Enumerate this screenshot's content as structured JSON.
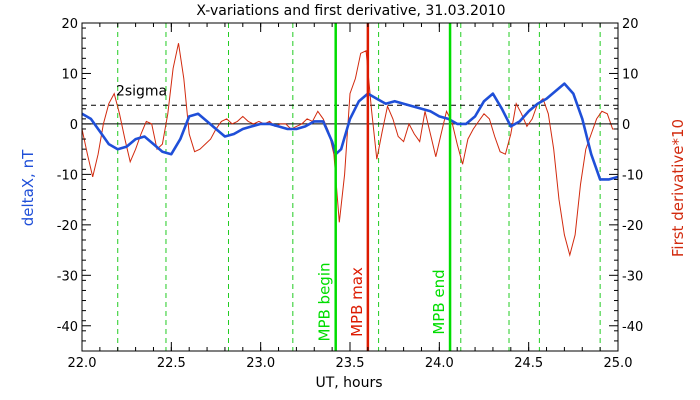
{
  "chart_data": {
    "type": "line",
    "title": "X-variations and first derivative, 31.03.2010",
    "xlabel": "UT, hours",
    "ylabel_left": "deltaX, nT",
    "ylabel_right": "First derivative*10",
    "xlim": [
      22.0,
      25.0
    ],
    "ylim": [
      -45,
      20
    ],
    "x_ticks": [
      "22.0",
      "22.5",
      "23.0",
      "23.5",
      "24.0",
      "24.5",
      "25.0"
    ],
    "y_ticks": [
      "20",
      "10",
      "0",
      "-10",
      "-20",
      "-30",
      "-40"
    ],
    "colors": {
      "deltaX": "#1f4fd8",
      "derivative": "#d22a0e",
      "mpb_lines": "#00dd00",
      "max_line": "#dd1a00",
      "dashed_vlines": "#22cc22",
      "sigma_line": "#000000",
      "left_axis_label": "#1f4fd8",
      "right_axis_label": "#d22a0e"
    },
    "sigma_label": "2sigma",
    "sigma_value": 3.7,
    "zero_line": 0,
    "dashed_vlines_x": [
      22.2,
      22.47,
      22.82,
      23.18,
      23.66,
      24.12,
      24.39,
      24.56,
      24.9
    ],
    "markers": [
      {
        "label": "MPB begin",
        "x": 23.42,
        "color": "#00dd00"
      },
      {
        "label": "MPB max",
        "x": 23.6,
        "color": "#dd1a00"
      },
      {
        "label": "MPB end",
        "x": 24.06,
        "color": "#00dd00"
      }
    ],
    "series": [
      {
        "key": "deltaX",
        "color": "#1f4fd8",
        "x": [
          22.0,
          22.05,
          22.1,
          22.15,
          22.2,
          22.25,
          22.3,
          22.35,
          22.4,
          22.45,
          22.5,
          22.55,
          22.6,
          22.65,
          22.7,
          22.75,
          22.8,
          22.85,
          22.9,
          22.95,
          23.0,
          23.05,
          23.1,
          23.15,
          23.2,
          23.25,
          23.3,
          23.35,
          23.4,
          23.42,
          23.45,
          23.5,
          23.55,
          23.6,
          23.65,
          23.7,
          23.75,
          23.8,
          23.85,
          23.9,
          23.95,
          24.0,
          24.05,
          24.1,
          24.15,
          24.2,
          24.25,
          24.3,
          24.35,
          24.4,
          24.45,
          24.5,
          24.55,
          24.6,
          24.65,
          24.7,
          24.75,
          24.8,
          24.85,
          24.9,
          24.95,
          25.0
        ],
        "y": [
          2.0,
          1.0,
          -1.5,
          -4.0,
          -5.0,
          -4.5,
          -3.0,
          -2.5,
          -4.0,
          -5.5,
          -6.0,
          -3.0,
          1.5,
          2.0,
          0.5,
          -1.0,
          -2.5,
          -2.0,
          -1.0,
          -0.5,
          0.0,
          0.0,
          -0.5,
          -1.0,
          -1.0,
          -0.5,
          0.5,
          0.5,
          -3.5,
          -6.0,
          -5.0,
          1.0,
          4.5,
          6.0,
          5.0,
          4.0,
          4.5,
          4.0,
          3.5,
          3.0,
          2.5,
          1.5,
          1.0,
          0.0,
          0.0,
          1.5,
          4.5,
          6.0,
          3.0,
          -0.5,
          0.5,
          2.5,
          4.0,
          5.0,
          6.5,
          8.0,
          6.0,
          1.0,
          -6.0,
          -11.0,
          -11.0,
          -10.5
        ]
      },
      {
        "key": "derivative",
        "color": "#d22a0e",
        "x": [
          22.0,
          22.03,
          22.06,
          22.09,
          22.12,
          22.15,
          22.18,
          22.21,
          22.24,
          22.27,
          22.3,
          22.33,
          22.36,
          22.39,
          22.42,
          22.45,
          22.48,
          22.51,
          22.54,
          22.57,
          22.6,
          22.63,
          22.66,
          22.69,
          22.72,
          22.75,
          22.78,
          22.81,
          22.84,
          22.87,
          22.9,
          22.93,
          22.96,
          22.99,
          23.02,
          23.05,
          23.08,
          23.11,
          23.14,
          23.17,
          23.2,
          23.23,
          23.26,
          23.29,
          23.32,
          23.35,
          23.38,
          23.41,
          23.44,
          23.47,
          23.5,
          23.53,
          23.56,
          23.59,
          23.62,
          23.65,
          23.68,
          23.71,
          23.74,
          23.77,
          23.8,
          23.83,
          23.86,
          23.89,
          23.92,
          23.95,
          23.98,
          24.01,
          24.04,
          24.07,
          24.1,
          24.13,
          24.16,
          24.19,
          24.22,
          24.25,
          24.28,
          24.31,
          24.34,
          24.37,
          24.4,
          24.43,
          24.46,
          24.49,
          24.52,
          24.55,
          24.58,
          24.61,
          24.64,
          24.67,
          24.7,
          24.73,
          24.76,
          24.79,
          24.82,
          24.85,
          24.88,
          24.91,
          24.94,
          24.97,
          25.0
        ],
        "y": [
          -1.0,
          -6.0,
          -10.5,
          -6.0,
          0.0,
          4.0,
          6.0,
          2.0,
          -3.0,
          -7.5,
          -5.0,
          -2.0,
          0.5,
          0.0,
          -5.0,
          -4.0,
          2.0,
          11.0,
          16.0,
          9.0,
          -2.0,
          -5.5,
          -5.0,
          -4.0,
          -3.0,
          -1.0,
          0.5,
          1.0,
          0.0,
          0.5,
          1.5,
          0.5,
          0.0,
          0.5,
          0.0,
          0.5,
          -0.5,
          0.0,
          0.0,
          -1.0,
          -0.5,
          0.0,
          1.0,
          0.5,
          2.5,
          1.0,
          -1.5,
          -6.0,
          -19.5,
          -10.0,
          6.0,
          9.0,
          14.0,
          14.5,
          3.0,
          -7.0,
          -1.5,
          3.5,
          1.0,
          -2.5,
          -3.5,
          0.0,
          -2.0,
          -3.5,
          2.5,
          -2.0,
          -6.5,
          -2.0,
          2.5,
          0.5,
          -4.0,
          -8.0,
          -3.0,
          -1.0,
          0.5,
          2.0,
          1.0,
          -2.5,
          -5.5,
          -6.0,
          -2.0,
          4.0,
          2.0,
          -0.5,
          1.0,
          4.0,
          5.0,
          2.0,
          -5.0,
          -15.0,
          -22.0,
          -26.0,
          -22.0,
          -12.0,
          -5.0,
          -2.0,
          1.0,
          2.5,
          2.0,
          -1.0,
          -1.0
        ]
      }
    ]
  }
}
